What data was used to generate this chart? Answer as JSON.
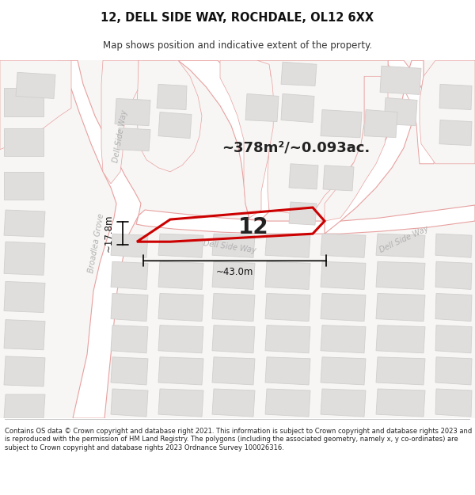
{
  "title": "12, DELL SIDE WAY, ROCHDALE, OL12 6XX",
  "subtitle": "Map shows position and indicative extent of the property.",
  "area_text": "~378m²/~0.093ac.",
  "footer": "Contains OS data © Crown copyright and database right 2021. This information is subject to Crown copyright and database rights 2023 and is reproduced with the permission of HM Land Registry. The polygons (including the associated geometry, namely x, y co-ordinates) are subject to Crown copyright and database rights 2023 Ordnance Survey 100026316.",
  "map_bg": "#f7f6f4",
  "road_outline_color": "#e8a0a0",
  "building_fill": "#e0dedd",
  "building_edge": "#d0cfce",
  "plot_color": "#cc0000",
  "plot_label": "12",
  "dim_h": "~17.8m",
  "dim_w": "~43.0m",
  "road_label_color": "#b0b0b0",
  "dim_color": "#111111",
  "text_color": "#222222"
}
